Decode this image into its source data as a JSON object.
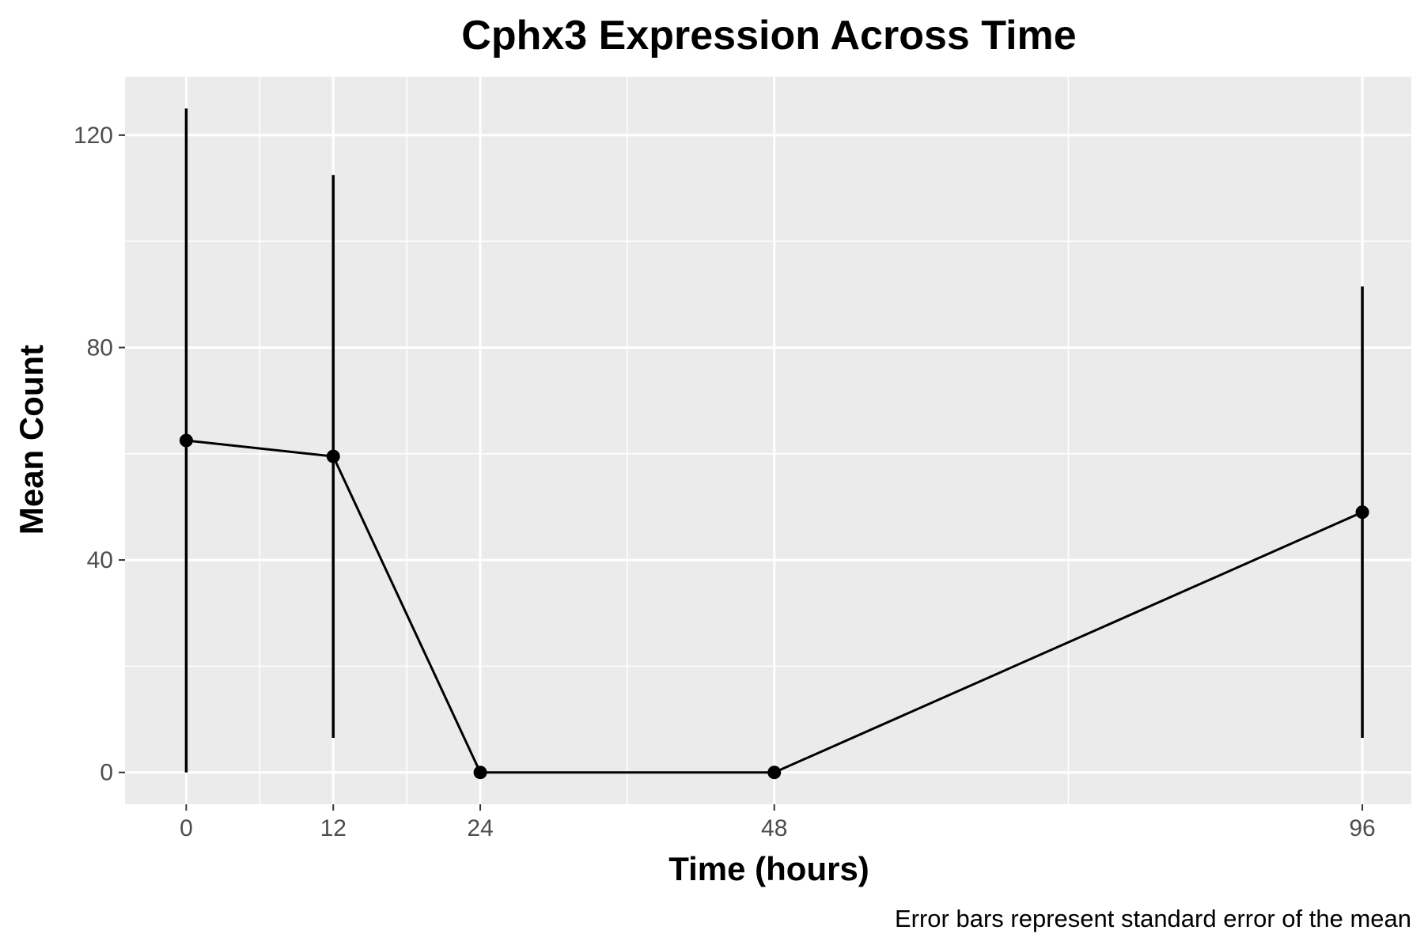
{
  "chart_data": {
    "type": "line",
    "title": "Cphx3 Expression Across Time",
    "xlabel": "Time (hours)",
    "ylabel": "Mean Count",
    "caption": "Error bars represent standard error of the mean",
    "x": [
      0,
      12,
      24,
      48,
      96
    ],
    "x_tick_labels": [
      "0",
      "12",
      "24",
      "48",
      "96"
    ],
    "y_tick_labels": [
      "0",
      "40",
      "80",
      "120"
    ],
    "series": [
      {
        "values": [
          62.5,
          59.5,
          0,
          0,
          49
        ],
        "error_low": [
          0,
          6.5,
          0,
          0,
          6.5
        ],
        "error_high": [
          125,
          112.5,
          0,
          0,
          91.5
        ],
        "color": "#000000"
      }
    ],
    "xlim": [
      -5,
      100
    ],
    "ylim": [
      -6,
      131
    ],
    "y_ticks": [
      0,
      40,
      80,
      120
    ],
    "x_ticks": [
      0,
      12,
      24,
      48,
      96
    ],
    "grid": true,
    "panel_background": "#ebebeb",
    "grid_color": "#ffffff"
  }
}
